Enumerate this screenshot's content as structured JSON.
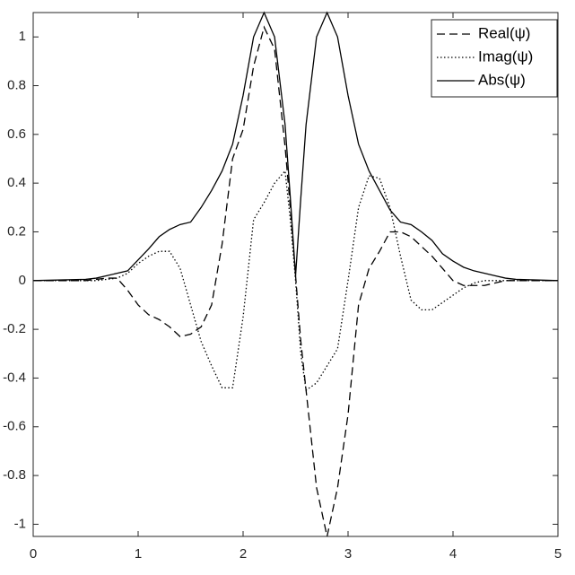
{
  "chart_data": {
    "type": "line",
    "x": [
      0,
      0.5,
      0.6,
      0.7,
      0.8,
      0.9,
      1.0,
      1.1,
      1.2,
      1.3,
      1.4,
      1.5,
      1.6,
      1.7,
      1.8,
      1.9,
      2.0,
      2.1,
      2.2,
      2.3,
      2.4,
      2.45,
      2.5,
      2.55,
      2.6,
      2.7,
      2.8,
      2.9,
      3.0,
      3.1,
      3.2,
      3.3,
      3.4,
      3.5,
      3.6,
      3.7,
      3.8,
      3.9,
      4.0,
      4.1,
      4.2,
      4.3,
      4.4,
      4.5,
      4.6,
      5
    ],
    "series": [
      {
        "name": "Real(ψ)",
        "color": "#000000",
        "style": "dashed",
        "values": [
          0,
          0,
          0.005,
          0.01,
          0.01,
          -0.04,
          -0.1,
          -0.14,
          -0.16,
          -0.19,
          -0.23,
          -0.22,
          -0.19,
          -0.1,
          0.15,
          0.5,
          0.62,
          0.88,
          1.04,
          0.95,
          0.55,
          0.3,
          0.02,
          -0.25,
          -0.45,
          -0.85,
          -1.05,
          -0.85,
          -0.55,
          -0.1,
          0.05,
          0.12,
          0.2,
          0.2,
          0.18,
          0.14,
          0.1,
          0.05,
          0,
          -0.02,
          -0.02,
          -0.02,
          -0.01,
          0,
          0,
          0
        ]
      },
      {
        "name": "Imag(ψ)",
        "color": "#000000",
        "style": "dotted",
        "values": [
          0,
          0,
          0,
          0.005,
          0.01,
          0.03,
          0.07,
          0.1,
          0.12,
          0.12,
          0.05,
          -0.1,
          -0.25,
          -0.35,
          -0.44,
          -0.44,
          -0.15,
          0.25,
          0.32,
          0.4,
          0.45,
          0.25,
          0,
          -0.3,
          -0.45,
          -0.42,
          -0.35,
          -0.28,
          0,
          0.3,
          0.43,
          0.42,
          0.3,
          0.1,
          -0.08,
          -0.12,
          -0.12,
          -0.09,
          -0.06,
          -0.03,
          -0.01,
          0,
          0,
          0,
          0,
          0
        ]
      },
      {
        "name": "Abs(ψ)",
        "color": "#000000",
        "style": "solid",
        "values": [
          0,
          0.005,
          0.01,
          0.02,
          0.03,
          0.04,
          0.085,
          0.13,
          0.18,
          0.21,
          0.23,
          0.24,
          0.3,
          0.37,
          0.45,
          0.56,
          0.76,
          1.0,
          1.1,
          1.0,
          0.64,
          0.34,
          0.02,
          0.34,
          0.64,
          1.0,
          1.1,
          1.0,
          0.76,
          0.56,
          0.45,
          0.37,
          0.29,
          0.24,
          0.23,
          0.2,
          0.165,
          0.11,
          0.08,
          0.055,
          0.04,
          0.03,
          0.02,
          0.01,
          0.005,
          0
        ]
      }
    ],
    "xlim": [
      0,
      5
    ],
    "xticks": [
      0,
      1,
      2,
      3,
      4,
      5
    ],
    "ylim": [
      -1.05,
      1.1
    ],
    "yticks": [
      -1,
      -0.8,
      -0.6,
      -0.4,
      -0.2,
      0,
      0.2,
      0.4,
      0.6,
      0.8,
      1
    ],
    "grid": false,
    "legend": "northeast"
  }
}
